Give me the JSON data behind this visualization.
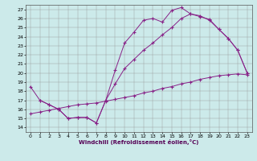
{
  "xlabel": "Windchill (Refroidissement éolien,°C)",
  "bg_color": "#cceaea",
  "line_color": "#882288",
  "xlim": [
    -0.5,
    23.5
  ],
  "ylim": [
    13.5,
    27.5
  ],
  "xticks": [
    0,
    1,
    2,
    3,
    4,
    5,
    6,
    7,
    8,
    9,
    10,
    11,
    12,
    13,
    14,
    15,
    16,
    17,
    18,
    19,
    20,
    21,
    22,
    23
  ],
  "yticks": [
    14,
    15,
    16,
    17,
    18,
    19,
    20,
    21,
    22,
    23,
    24,
    25,
    26,
    27
  ],
  "line1_x": [
    0,
    1,
    2,
    3,
    4,
    5,
    6,
    7,
    8,
    9,
    10,
    11,
    12,
    13,
    14,
    15,
    16,
    17,
    18,
    19,
    20,
    21,
    22,
    23
  ],
  "line1_y": [
    18.5,
    17.0,
    16.5,
    16.0,
    15.0,
    15.1,
    15.1,
    14.5,
    17.0,
    20.3,
    23.3,
    24.5,
    25.8,
    26.0,
    25.6,
    26.9,
    27.2,
    26.5,
    26.2,
    25.9,
    24.8,
    23.8,
    22.5,
    20.0
  ],
  "line2_x": [
    0,
    1,
    2,
    3,
    4,
    5,
    6,
    7,
    8,
    9,
    10,
    11,
    12,
    13,
    14,
    15,
    16,
    17,
    18,
    19,
    20,
    21,
    22,
    23
  ],
  "line2_y": [
    15.5,
    15.7,
    15.9,
    16.1,
    16.3,
    16.5,
    16.6,
    16.7,
    16.9,
    17.1,
    17.3,
    17.5,
    17.8,
    18.0,
    18.3,
    18.5,
    18.8,
    19.0,
    19.3,
    19.5,
    19.7,
    19.8,
    19.9,
    19.8
  ],
  "line3_x": [
    1,
    2,
    3,
    4,
    5,
    6,
    7,
    8,
    9,
    10,
    11,
    12,
    13,
    14,
    15,
    16,
    17,
    18,
    19,
    20,
    21,
    22,
    23
  ],
  "line3_y": [
    17.0,
    16.5,
    16.0,
    15.0,
    15.1,
    15.1,
    14.5,
    17.0,
    18.8,
    20.5,
    21.5,
    22.5,
    23.3,
    24.2,
    25.0,
    26.0,
    26.5,
    26.3,
    25.8,
    24.8,
    23.8,
    22.5,
    20.0
  ]
}
